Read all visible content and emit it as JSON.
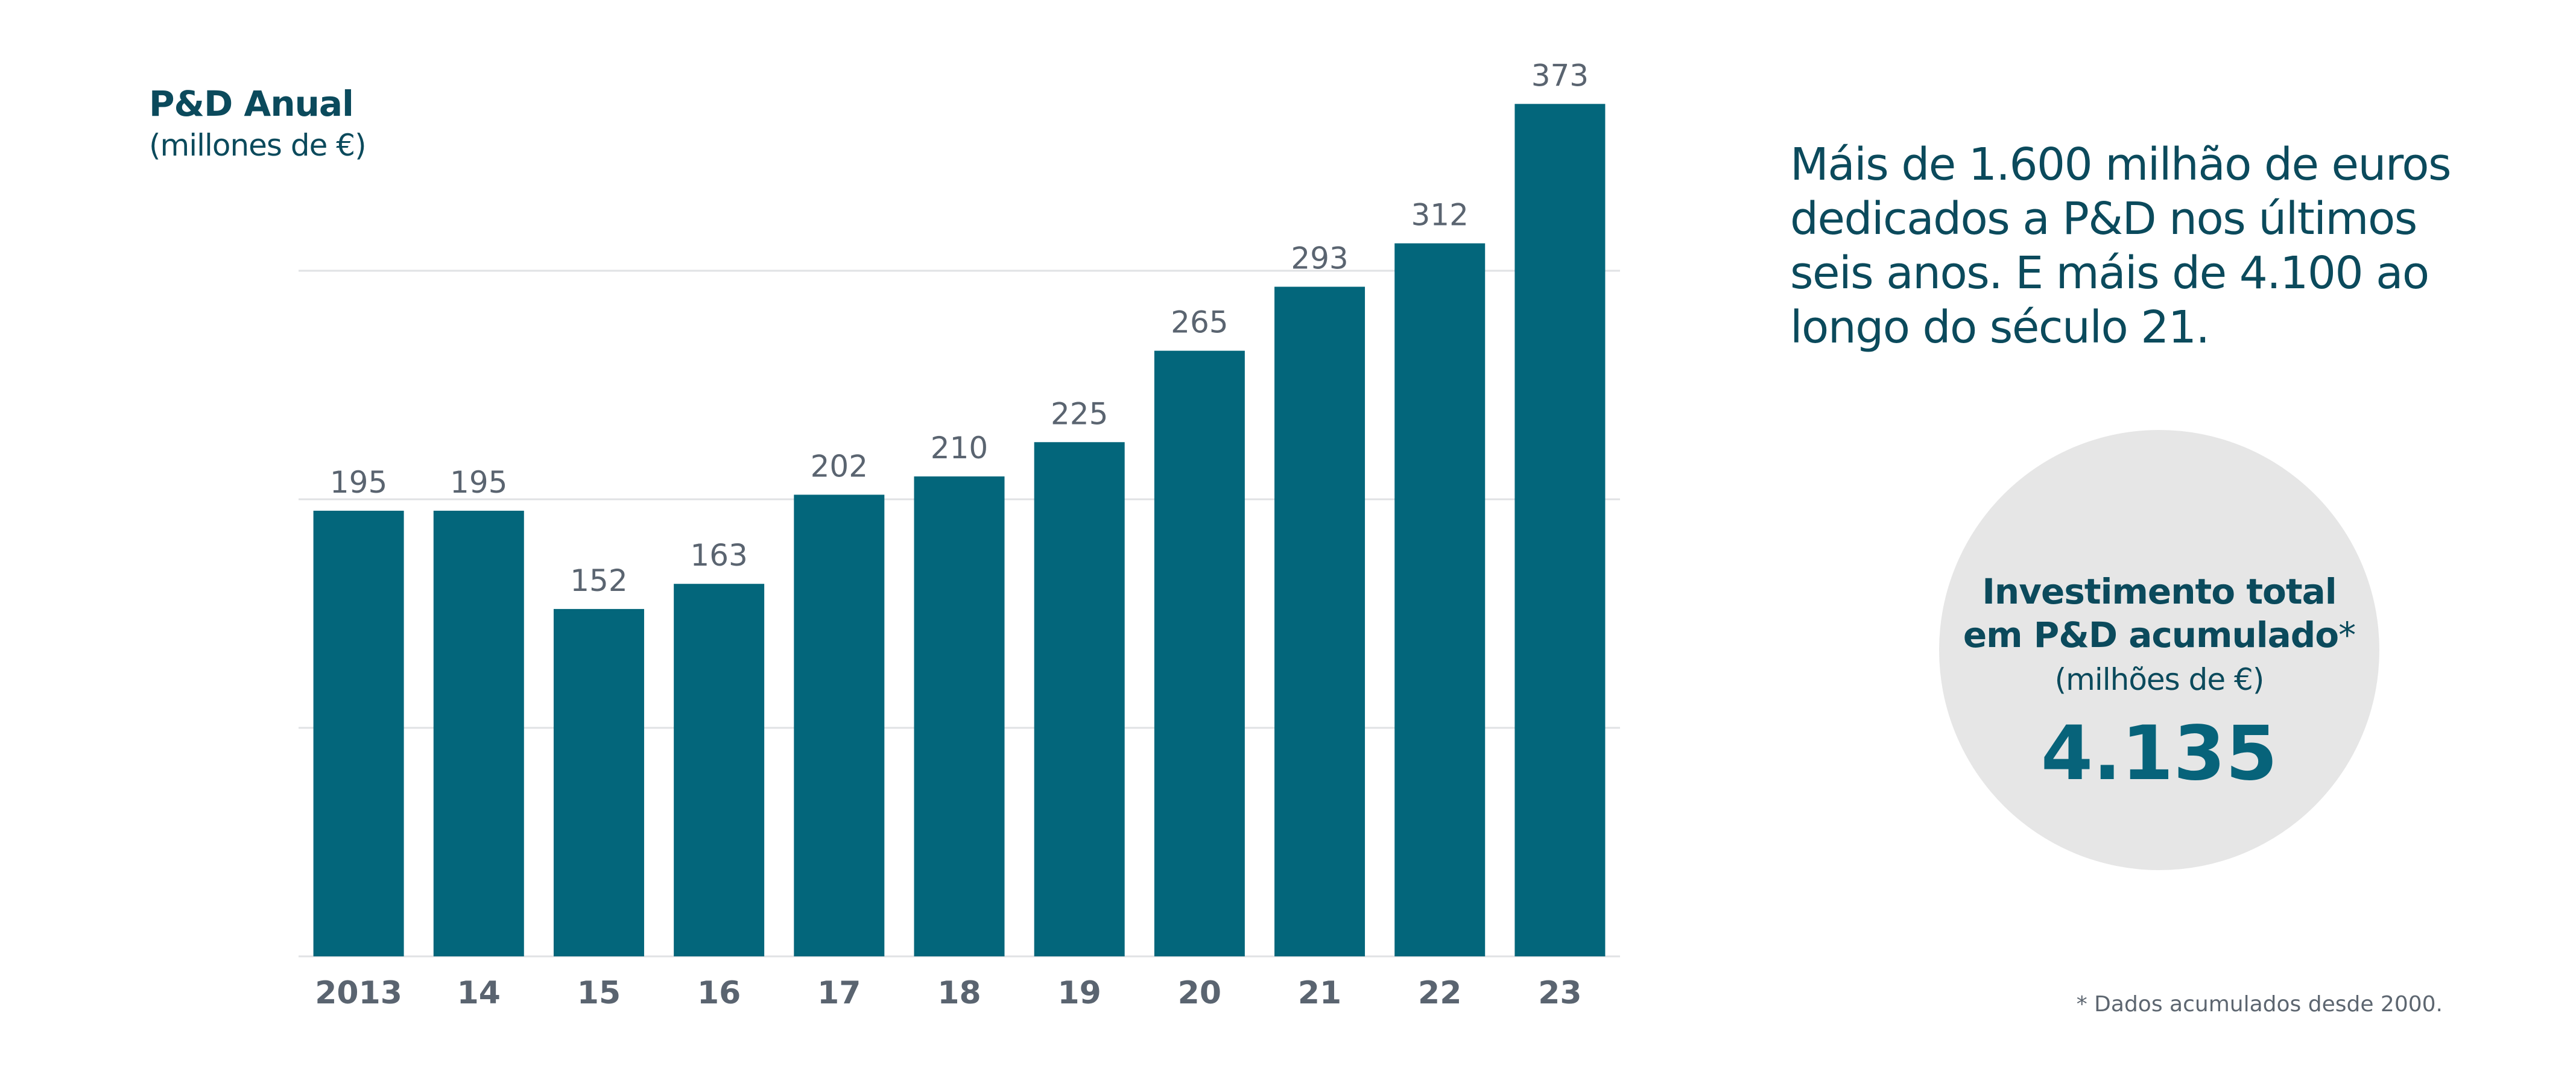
{
  "chart_data": {
    "type": "bar",
    "title": "P&D Anual",
    "subtitle": "(millones de €)",
    "categories": [
      "2013",
      "14",
      "15",
      "16",
      "17",
      "18",
      "19",
      "20",
      "21",
      "22",
      "23"
    ],
    "values": [
      195,
      195,
      152,
      163,
      202,
      210,
      225,
      265,
      293,
      312,
      373
    ],
    "ylim": [
      0,
      400
    ],
    "grid": true,
    "bar_color": "#03667b",
    "grid_color": "#e0e2e4",
    "value_label_color": "#5a6470",
    "tick_label_color": "#5a6470"
  },
  "headline": "Máis de 1.600 milhão de euros dedicados a P&D nos últimos seis anos. E máis de 4.100 ao longo do século 21.",
  "summary": {
    "title_line1": "Investimento total",
    "title_line2": "em P&D acumulado",
    "title_mark": "*",
    "subtitle": "(milhões de €)",
    "value": "4.135"
  },
  "footnote": "* Dados acumulados desde 2000."
}
